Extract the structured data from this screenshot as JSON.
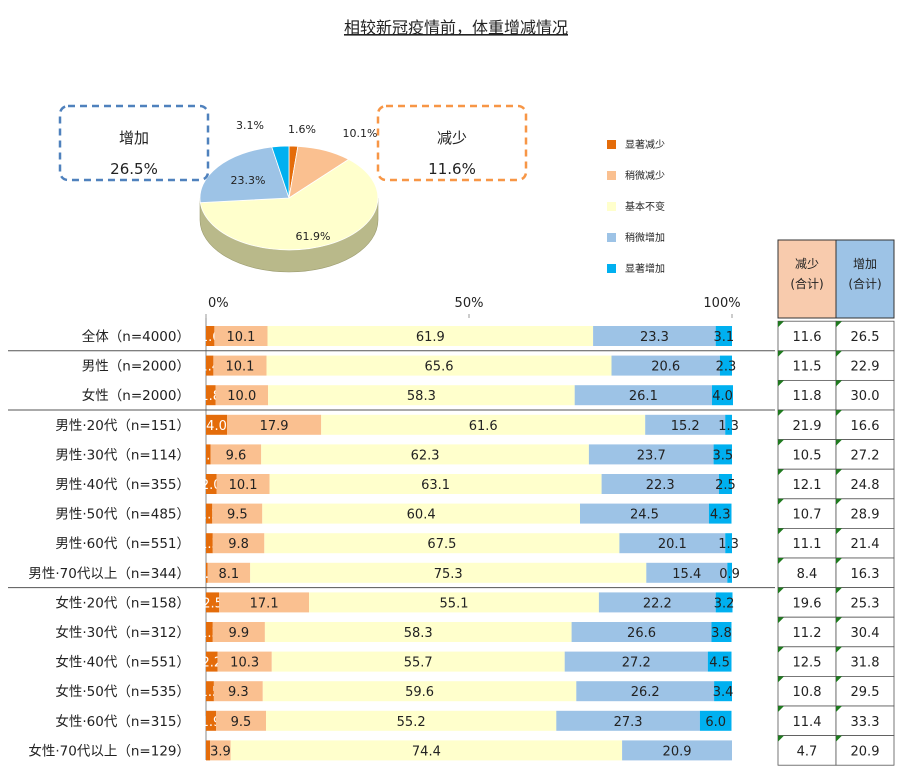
{
  "colors": {
    "significant_decrease": "#e46c0a",
    "slight_decrease": "#fac090",
    "no_change": "#ffffcc",
    "slight_increase": "#9dc3e6",
    "significant_increase": "#00b0f0",
    "decrease_header_bg": "#f8cbad",
    "increase_header_bg": "#9dc3e6"
  },
  "chart_data": [
    {
      "type": "pie",
      "title": "相较新冠疫情前，体重增减情况",
      "slices": [
        {
          "name": "显著减少",
          "value": 1.6,
          "label": "1.6%"
        },
        {
          "name": "稍微减少",
          "value": 10.1,
          "label": "10.1%"
        },
        {
          "name": "基本不变",
          "value": 61.9,
          "label": "61.9%"
        },
        {
          "name": "稍微增加",
          "value": 23.3,
          "label": "23.3%"
        },
        {
          "name": "显著增加",
          "value": 3.1,
          "label": "3.1%"
        }
      ],
      "callouts": [
        {
          "name": "increase",
          "title": "增加",
          "value": "26.5%"
        },
        {
          "name": "decrease",
          "title": "减少",
          "value": "11.6%"
        }
      ],
      "legend": [
        "显著减少",
        "稍微减少",
        "基本不变",
        "稍微增加",
        "显著增加"
      ]
    },
    {
      "type": "bar",
      "orientation": "horizontal-stacked-100",
      "axis_ticks": [
        "0%",
        "50%",
        "100%"
      ],
      "xlim": [
        0,
        100
      ],
      "series_names": [
        "显著减少",
        "稍微减少",
        "基本不变",
        "稍微增加",
        "显著增加"
      ],
      "rows": [
        {
          "label": "全体（n=4000）",
          "values": [
            1.6,
            10.1,
            61.9,
            23.3,
            3.1
          ],
          "texts": [
            "1.6",
            "10.1",
            "61.9",
            "23.3",
            "3.1"
          ],
          "decrease": "11.6",
          "increase": "26.5"
        },
        {
          "label": "男性（n=2000）",
          "values": [
            1.4,
            10.1,
            65.6,
            20.6,
            2.3
          ],
          "texts": [
            "1.4",
            "10.1",
            "65.6",
            "20.6",
            "2.3"
          ],
          "decrease": "11.5",
          "increase": "22.9"
        },
        {
          "label": "女性（n=2000）",
          "values": [
            1.8,
            10.0,
            58.3,
            26.1,
            4.0
          ],
          "texts": [
            "1.8",
            "10.0",
            "58.3",
            "26.1",
            "4.0"
          ],
          "decrease": "11.8",
          "increase": "30.0"
        },
        {
          "label": "男性·20代（n=151）",
          "values": [
            4.0,
            17.9,
            61.6,
            15.2,
            1.3
          ],
          "texts": [
            "4.0",
            "17.9",
            "61.6",
            "15.2",
            "1.3"
          ],
          "decrease": "21.9",
          "increase": "16.6"
        },
        {
          "label": "男性·30代（n=114）",
          "values": [
            0.9,
            9.6,
            62.3,
            23.7,
            3.5
          ],
          "texts": [
            "0.9",
            "9.6",
            "62.3",
            "23.7",
            "3.5"
          ],
          "decrease": "10.5",
          "increase": "27.2"
        },
        {
          "label": "男性·40代（n=355）",
          "values": [
            2.0,
            10.1,
            63.1,
            22.3,
            2.5
          ],
          "texts": [
            "2.0",
            "10.1",
            "63.1",
            "22.3",
            "2.5"
          ],
          "decrease": "12.1",
          "increase": "24.8"
        },
        {
          "label": "男性·50代（n=485）",
          "values": [
            1.2,
            9.5,
            60.4,
            24.5,
            4.3
          ],
          "texts": [
            "1.2",
            "9.5",
            "60.4",
            "24.5",
            "4.3"
          ],
          "decrease": "10.7",
          "increase": "28.9"
        },
        {
          "label": "男性·60代（n=551）",
          "values": [
            1.3,
            9.8,
            67.5,
            20.1,
            1.3
          ],
          "texts": [
            "1.3",
            "9.8",
            "67.5",
            "20.1",
            "1.3"
          ],
          "decrease": "11.1",
          "increase": "21.4"
        },
        {
          "label": "男性·70代以上（n=344）",
          "values": [
            0.3,
            8.1,
            75.3,
            15.4,
            0.9
          ],
          "texts": [
            "0.3",
            "8.1",
            "75.3",
            "15.4",
            "0.9"
          ],
          "decrease": "8.4",
          "increase": "16.3"
        },
        {
          "label": "女性·20代（n=158）",
          "values": [
            2.5,
            17.1,
            55.1,
            22.2,
            3.2
          ],
          "texts": [
            "2.5",
            "17.1",
            "55.1",
            "22.2",
            "3.2"
          ],
          "decrease": "19.6",
          "increase": "25.3"
        },
        {
          "label": "女性·30代（n=312）",
          "values": [
            1.3,
            9.9,
            58.3,
            26.6,
            3.8
          ],
          "texts": [
            "1.3",
            "9.9",
            "58.3",
            "26.6",
            "3.8"
          ],
          "decrease": "11.2",
          "increase": "30.4"
        },
        {
          "label": "女性·40代（n=551）",
          "values": [
            2.2,
            10.3,
            55.7,
            27.2,
            4.5
          ],
          "texts": [
            "2.2",
            "10.3",
            "55.7",
            "27.2",
            "4.5"
          ],
          "decrease": "12.5",
          "increase": "31.8"
        },
        {
          "label": "女性·50代（n=535）",
          "values": [
            1.5,
            9.3,
            59.6,
            26.2,
            3.4
          ],
          "texts": [
            "1.5",
            "9.3",
            "59.6",
            "26.2",
            "3.4"
          ],
          "decrease": "10.8",
          "increase": "29.5"
        },
        {
          "label": "女性·60代（n=315）",
          "values": [
            1.9,
            9.5,
            55.2,
            27.3,
            6.0
          ],
          "texts": [
            "1.9",
            "9.5",
            "55.2",
            "27.3",
            "6.0"
          ],
          "decrease": "11.4",
          "increase": "33.3"
        },
        {
          "label": "女性·70代以上（n=129）",
          "values": [
            0.8,
            3.9,
            74.4,
            20.9,
            0.0
          ],
          "texts": [
            "",
            "3.9",
            "74.4",
            "20.9",
            ""
          ],
          "decrease": "4.7",
          "increase": "20.9"
        }
      ],
      "table_headers": [
        {
          "name": "decrease",
          "line1": "减少",
          "line2": "(合计)"
        },
        {
          "name": "increase",
          "line1": "增加",
          "line2": "(合计)"
        }
      ]
    }
  ]
}
